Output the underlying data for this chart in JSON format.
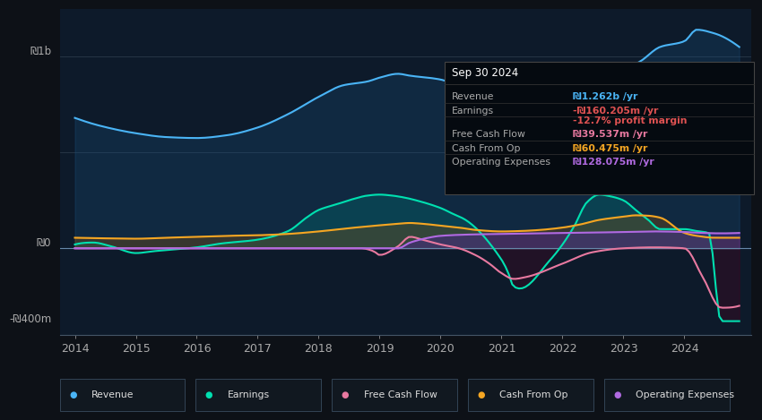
{
  "bg_color": "#0d1117",
  "plot_bg_color": "#0d1a2a",
  "ylabel_1b": "₪1b",
  "ylabel_0": "₪0",
  "ylabel_neg400m": "-₪400m",
  "info_box": {
    "date": "Sep 30 2024",
    "rows": [
      {
        "label": "Revenue",
        "value": "₪1.262b /yr",
        "value_color": "#4ab4f5"
      },
      {
        "label": "Earnings",
        "value": "-₪160.205m /yr",
        "value_color": "#e05252"
      },
      {
        "label": "",
        "value": "-12.7% profit margin",
        "value_color": "#e05252"
      },
      {
        "label": "Free Cash Flow",
        "value": "₪39.537m /yr",
        "value_color": "#e879a0"
      },
      {
        "label": "Cash From Op",
        "value": "₪60.475m /yr",
        "value_color": "#f5a623"
      },
      {
        "label": "Operating Expenses",
        "value": "₪128.075m /yr",
        "value_color": "#b06ae0"
      }
    ]
  },
  "legend": [
    {
      "label": "Revenue",
      "color": "#4ab4f5"
    },
    {
      "label": "Earnings",
      "color": "#00e0b0"
    },
    {
      "label": "Free Cash Flow",
      "color": "#e879a0"
    },
    {
      "label": "Cash From Op",
      "color": "#f5a623"
    },
    {
      "label": "Operating Expenses",
      "color": "#b06ae0"
    }
  ],
  "revenue_color": "#4ab4f5",
  "earnings_color": "#00e0b0",
  "fcf_color": "#e879a0",
  "cop_color": "#f5a623",
  "opex_color": "#b06ae0",
  "grid_color": "#2a3a4a",
  "zero_line_color": "#8899aa",
  "line_width": 1.5,
  "ylim_min": -450,
  "ylim_max": 1250
}
